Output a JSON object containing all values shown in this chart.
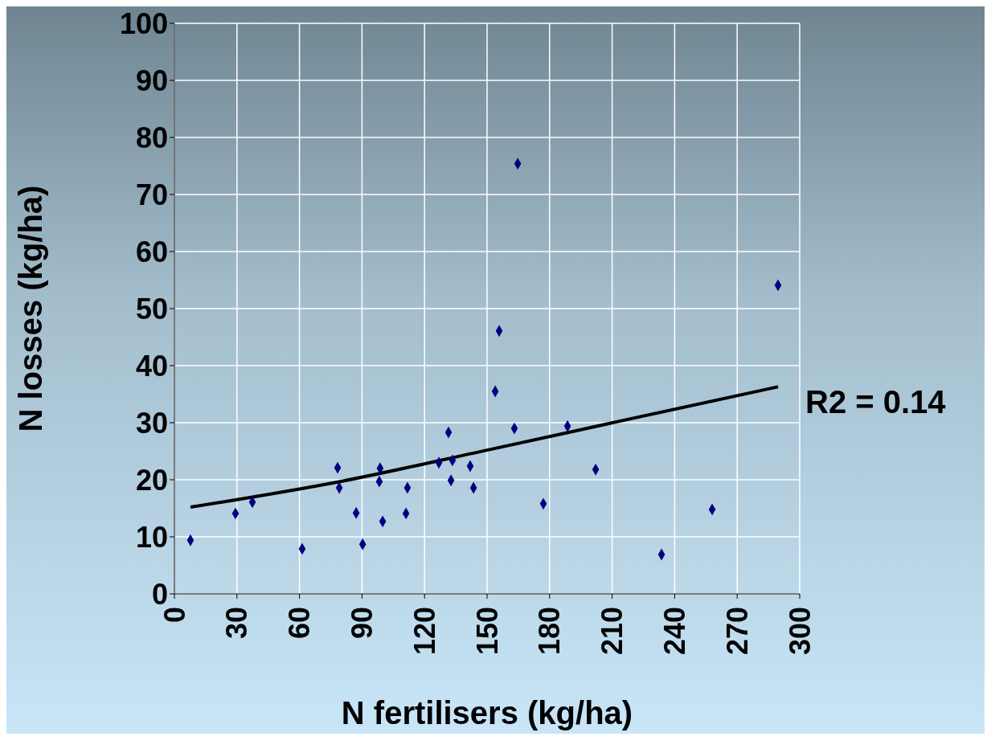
{
  "chart_data": {
    "type": "scatter",
    "xlabel": "N fertilisers (kg/ha)",
    "ylabel": "N losses (kg/ha)",
    "xlim": [
      0,
      300
    ],
    "xticks": [
      0,
      30,
      60,
      90,
      120,
      150,
      180,
      210,
      240,
      270,
      300
    ],
    "ylim": [
      0,
      100
    ],
    "yticks": [
      0,
      10,
      20,
      30,
      40,
      50,
      60,
      70,
      80,
      90,
      100
    ],
    "grid": true,
    "marker": "diamond",
    "legend": false,
    "annotations": [
      "R2 = 0.14"
    ],
    "series": [
      {
        "color": "#000080",
        "x": [
          7.7,
          29.3,
          37.4,
          61.3,
          78.3,
          79.1,
          87.2,
          90.3,
          98.7,
          98.3,
          99.9,
          111.8,
          111.1,
          126.9,
          131.5,
          132.7,
          133.4,
          141.9,
          143.5,
          153.9,
          155.8,
          163.1,
          164.7,
          177.0,
          188.6,
          202.1,
          233.7,
          258.0,
          289.6
        ],
        "values": [
          9.4,
          14.1,
          16.1,
          7.9,
          22.1,
          18.6,
          14.2,
          8.7,
          22.0,
          19.7,
          12.7,
          18.6,
          14.1,
          23.0,
          28.3,
          19.9,
          23.4,
          22.4,
          18.6,
          35.5,
          46.1,
          29.0,
          75.4,
          15.8,
          29.4,
          21.8,
          6.9,
          14.8,
          54.1
        ]
      },
      {
        "type": "line",
        "color": "#000000",
        "marker": "none",
        "x": [
          7.7,
          81,
          150,
          209,
          289.6
        ],
        "values": [
          15.2,
          19.8,
          25.2,
          29.9,
          36.3
        ]
      }
    ]
  }
}
